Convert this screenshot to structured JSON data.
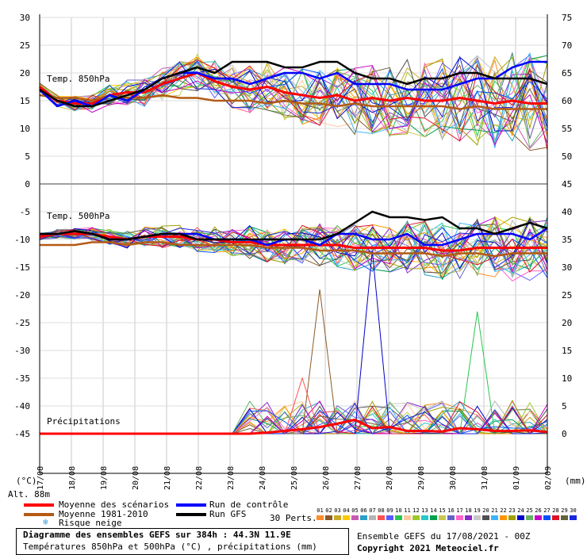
{
  "chart_data": {
    "type": "line",
    "left_axis_label": "(°C)",
    "right_axis_label": "(mm)",
    "left_ticks": [
      30,
      25,
      20,
      15,
      10,
      5,
      0,
      -5,
      -10,
      -15,
      -20,
      -25,
      -30,
      -35,
      -40,
      -45
    ],
    "right_ticks_temp": [
      75,
      70,
      65,
      60,
      55,
      50,
      45
    ],
    "right_ticks_precip": [
      40,
      35,
      30,
      25,
      20,
      15,
      10,
      5,
      0
    ],
    "x_labels": [
      "17/08",
      "18/08",
      "19/08",
      "20/08",
      "21/08",
      "22/08",
      "23/08",
      "24/08",
      "25/08",
      "26/08",
      "27/08",
      "28/08",
      "29/08",
      "30/08",
      "31/08",
      "01/09",
      "02/09"
    ],
    "panels": [
      {
        "title": "Temp. 850hPa",
        "series": [
          {
            "name": "Moyenne des scénarios",
            "color": "#ff0000",
            "values": [
              17.5,
              15,
              14.5,
              14.5,
              16,
              16.5,
              16.5,
              18,
              19,
              20,
              18.5,
              17.5,
              17,
              17.5,
              16.5,
              16,
              15.5,
              16,
              15,
              15.5,
              15,
              15.5,
              15,
              15,
              15.5,
              15,
              14.5,
              15,
              14.5,
              14.5
            ]
          },
          {
            "name": "Moyenne 1981-2010",
            "color": "#b45a14",
            "values": [
              16,
              15.5,
              15.5,
              15,
              16,
              15.5,
              15.5,
              16,
              15.5,
              15.5,
              15,
              15,
              15,
              14.5,
              15,
              14.5,
              14.5,
              14,
              14.5,
              14,
              14,
              14,
              14,
              14,
              13.5,
              14,
              13.5,
              13.5,
              13.5,
              13.5
            ]
          },
          {
            "name": "Run de contrôle",
            "color": "#0000ff",
            "values": [
              17,
              14,
              15,
              14,
              16,
              15,
              17,
              19,
              20,
              20,
              19,
              19,
              18,
              19,
              20,
              20,
              19,
              20,
              18,
              18,
              18,
              17,
              17,
              17,
              18,
              19,
              19,
              21,
              22,
              22
            ]
          },
          {
            "name": "Run GFS",
            "color": "#000000",
            "values": [
              17,
              15,
              14,
              14,
              15,
              16,
              17,
              19,
              20,
              21,
              20,
              22,
              22,
              22,
              21,
              21,
              22,
              22,
              20,
              19,
              19,
              18,
              19,
              19,
              20,
              20,
              19,
              19,
              19,
              18
            ]
          }
        ]
      },
      {
        "title": "Temp. 500hPa",
        "series": [
          {
            "name": "Moyenne des scénarios",
            "color": "#ff0000",
            "values": [
              -9.5,
              -9,
              -9,
              -9,
              -9.5,
              -10,
              -9.5,
              -9.5,
              -9.5,
              -10,
              -10,
              -10.5,
              -10.5,
              -11,
              -11,
              -11,
              -11,
              -11,
              -11.5,
              -11.5,
              -11.5,
              -11.5,
              -11.5,
              -12,
              -12,
              -11.5,
              -11.5,
              -11.5,
              -11.5,
              -11.5
            ]
          },
          {
            "name": "Moyenne 1981-2010",
            "color": "#b45a14",
            "values": [
              -11,
              -11,
              -11,
              -10.5,
              -10.5,
              -11,
              -10.5,
              -10.5,
              -11,
              -11,
              -11,
              -11,
              -11,
              -11.5,
              -11.5,
              -11.5,
              -12,
              -12,
              -12,
              -12.5,
              -12.5,
              -12.5,
              -12.5,
              -13,
              -12.5,
              -12.5,
              -13,
              -12.5,
              -12.5,
              -12.5
            ]
          },
          {
            "name": "Run de contrôle",
            "color": "#0000ff",
            "values": [
              -9,
              -9,
              -8.5,
              -9,
              -10,
              -10,
              -9.5,
              -9,
              -9,
              -9,
              -10,
              -10,
              -10,
              -11,
              -10,
              -10,
              -11,
              -9,
              -9,
              -10,
              -10,
              -9,
              -11,
              -11,
              -10,
              -9,
              -9,
              -9,
              -10,
              -8
            ]
          },
          {
            "name": "Run GFS",
            "color": "#000000",
            "values": [
              -9,
              -9,
              -8.5,
              -9,
              -10,
              -10,
              -9.5,
              -9,
              -9,
              -10,
              -10,
              -10,
              -10,
              -10,
              -10,
              -10,
              -10,
              -9,
              -7,
              -5,
              -6,
              -6,
              -6.5,
              -6,
              -8,
              -8,
              -9,
              -8,
              -7,
              -8
            ]
          }
        ]
      },
      {
        "title": "Précipitations",
        "series": [
          {
            "name": "Moyenne des scénarios",
            "color": "#ff0000",
            "values": [
              0,
              0,
              0,
              0,
              0,
              0,
              0,
              0,
              0,
              0,
              0,
              0,
              0,
              0.2,
              0.5,
              0.8,
              1.2,
              1.8,
              2.5,
              1,
              1.2,
              0.5,
              0.5,
              0.4,
              1,
              0.8,
              0.5,
              0.5,
              0.6,
              0.3
            ]
          }
        ]
      }
    ]
  },
  "legend": {
    "alt": "Alt. 88m",
    "items": [
      {
        "label": "Moyenne des scénarios",
        "color": "#ff0000"
      },
      {
        "label": "Moyenne 1981-2010",
        "color": "#b45a14"
      },
      {
        "label": "Run de contrôle",
        "color": "#0000ff"
      },
      {
        "label": "Run GFS",
        "color": "#000000"
      }
    ],
    "snow": "Risque neige",
    "perts_label": "30 Perts.",
    "pert_numbers": [
      "01",
      "02",
      "03",
      "04",
      "05",
      "06",
      "07",
      "08",
      "09",
      "10",
      "11",
      "12",
      "13",
      "14",
      "15",
      "16",
      "17",
      "18",
      "19",
      "20",
      "21",
      "22",
      "23",
      "24",
      "25",
      "26",
      "27",
      "28",
      "29",
      "30"
    ],
    "pert_colors": [
      "#ff8c28",
      "#8c5a28",
      "#c8aa28",
      "#ffc800",
      "#c85ab4",
      "#28a0c8",
      "#b4b4b4",
      "#ff5050",
      "#5a5aff",
      "#28c850",
      "#ffc8a0",
      "#a0c828",
      "#28c8c8",
      "#00a050",
      "#c8c850",
      "#6464c8",
      "#ff64c8",
      "#8c28c8",
      "#c8c8c8",
      "#505050",
      "#3cb4ff",
      "#ff9600",
      "#a0a000",
      "#0000c8",
      "#64b464",
      "#c800c8",
      "#0050ff",
      "#dc1428",
      "#64643c",
      "#1428dc"
    ]
  },
  "footer": {
    "title": "Diagramme des ensembles GEFS sur 384h : 44.3N 11.9E",
    "subtitle": "Températures 850hPa et 500hPa (°C) , précipitations (mm)",
    "ensemble": "Ensemble GEFS du 17/08/2021 - 00Z",
    "copyright": "Copyright 2021 Meteociel.fr"
  }
}
